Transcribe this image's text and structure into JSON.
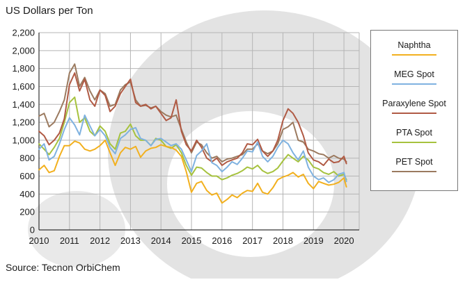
{
  "chart_data": {
    "type": "line",
    "title": "",
    "ylabel": "US Dollars per Ton",
    "xlabel": "",
    "source": "Source: Tecnon OrbiChem",
    "ylim": [
      0,
      2200
    ],
    "xlim": [
      2010,
      2020.5
    ],
    "yticks": [
      "0",
      "200",
      "400",
      "600",
      "800",
      "1,000",
      "1,200",
      "1,400",
      "1,600",
      "1,800",
      "2,000",
      "2,200"
    ],
    "xticks": [
      "2010",
      "2011",
      "2012",
      "2013",
      "2014",
      "2015",
      "2016",
      "2017",
      "2018",
      "2019",
      "2020"
    ],
    "grid": true,
    "legend_position": "right",
    "series": [
      {
        "name": "Naphtha",
        "color": "#f2b01e",
        "x": [
          2010.0,
          2010.17,
          2010.33,
          2010.5,
          2010.67,
          2010.83,
          2011.0,
          2011.17,
          2011.33,
          2011.5,
          2011.67,
          2011.83,
          2012.0,
          2012.17,
          2012.33,
          2012.5,
          2012.67,
          2012.83,
          2013.0,
          2013.17,
          2013.33,
          2013.5,
          2013.67,
          2013.83,
          2014.0,
          2014.17,
          2014.33,
          2014.5,
          2014.67,
          2014.83,
          2015.0,
          2015.17,
          2015.33,
          2015.5,
          2015.67,
          2015.83,
          2016.0,
          2016.17,
          2016.33,
          2016.5,
          2016.67,
          2016.83,
          2017.0,
          2017.17,
          2017.33,
          2017.5,
          2017.67,
          2017.83,
          2018.0,
          2018.17,
          2018.33,
          2018.5,
          2018.67,
          2018.83,
          2019.0,
          2019.17,
          2019.33,
          2019.5,
          2019.67,
          2019.83,
          2020.0,
          2020.08
        ],
        "values": [
          670,
          720,
          640,
          660,
          820,
          940,
          940,
          990,
          970,
          900,
          880,
          900,
          940,
          1000,
          860,
          720,
          860,
          920,
          900,
          930,
          810,
          880,
          910,
          920,
          950,
          930,
          920,
          890,
          820,
          650,
          420,
          520,
          540,
          440,
          390,
          410,
          300,
          340,
          390,
          360,
          410,
          440,
          430,
          520,
          420,
          400,
          470,
          560,
          590,
          610,
          640,
          590,
          620,
          520,
          460,
          540,
          520,
          500,
          510,
          530,
          580,
          480
        ]
      },
      {
        "name": "MEG Spot",
        "color": "#7fb2e0",
        "x": [
          2010.0,
          2010.17,
          2010.33,
          2010.5,
          2010.67,
          2010.83,
          2011.0,
          2011.17,
          2011.33,
          2011.5,
          2011.67,
          2011.83,
          2012.0,
          2012.17,
          2012.33,
          2012.5,
          2012.67,
          2012.83,
          2013.0,
          2013.17,
          2013.33,
          2013.5,
          2013.67,
          2013.83,
          2014.0,
          2014.17,
          2014.33,
          2014.5,
          2014.67,
          2014.83,
          2015.0,
          2015.17,
          2015.33,
          2015.5,
          2015.67,
          2015.83,
          2016.0,
          2016.17,
          2016.33,
          2016.5,
          2016.67,
          2016.83,
          2017.0,
          2017.17,
          2017.33,
          2017.5,
          2017.67,
          2017.83,
          2018.0,
          2018.17,
          2018.33,
          2018.5,
          2018.67,
          2018.83,
          2019.0,
          2019.17,
          2019.33,
          2019.5,
          2019.67,
          2019.83,
          2020.0,
          2020.08
        ],
        "values": [
          900,
          960,
          780,
          820,
          960,
          1120,
          1250,
          1170,
          1060,
          1280,
          1160,
          1050,
          1120,
          1050,
          920,
          850,
          1020,
          1060,
          1120,
          1140,
          1020,
          1000,
          940,
          1010,
          1020,
          980,
          940,
          960,
          900,
          780,
          650,
          830,
          880,
          960,
          750,
          720,
          650,
          700,
          760,
          730,
          800,
          880,
          870,
          980,
          820,
          760,
          820,
          920,
          1000,
          960,
          860,
          780,
          880,
          700,
          600,
          560,
          580,
          530,
          560,
          620,
          640,
          540
        ]
      },
      {
        "name": "Paraxylene Spot",
        "color": "#b05a44",
        "x": [
          2010.0,
          2010.17,
          2010.33,
          2010.5,
          2010.67,
          2010.83,
          2011.0,
          2011.17,
          2011.33,
          2011.5,
          2011.67,
          2011.83,
          2012.0,
          2012.17,
          2012.33,
          2012.5,
          2012.67,
          2012.83,
          2013.0,
          2013.17,
          2013.33,
          2013.5,
          2013.67,
          2013.83,
          2014.0,
          2014.17,
          2014.33,
          2014.5,
          2014.67,
          2014.83,
          2015.0,
          2015.17,
          2015.33,
          2015.5,
          2015.67,
          2015.83,
          2016.0,
          2016.17,
          2016.33,
          2016.5,
          2016.67,
          2016.83,
          2017.0,
          2017.17,
          2017.33,
          2017.5,
          2017.67,
          2017.83,
          2018.0,
          2018.17,
          2018.33,
          2018.5,
          2018.67,
          2018.83,
          2019.0,
          2019.17,
          2019.33,
          2019.5,
          2019.67,
          2019.83,
          2020.0,
          2020.08
        ],
        "values": [
          1100,
          1050,
          950,
          1000,
          1080,
          1240,
          1620,
          1750,
          1550,
          1680,
          1450,
          1380,
          1560,
          1500,
          1320,
          1380,
          1520,
          1600,
          1680,
          1420,
          1380,
          1400,
          1350,
          1380,
          1300,
          1220,
          1250,
          1450,
          1100,
          950,
          880,
          1000,
          920,
          800,
          760,
          800,
          720,
          760,
          780,
          800,
          860,
          960,
          950,
          1010,
          880,
          820,
          880,
          1000,
          1220,
          1350,
          1300,
          1200,
          1050,
          860,
          780,
          760,
          720,
          790,
          750,
          760,
          820,
          740
        ]
      },
      {
        "name": "PTA Spot",
        "color": "#a6c23e",
        "x": [
          2010.0,
          2010.17,
          2010.33,
          2010.5,
          2010.67,
          2010.83,
          2011.0,
          2011.17,
          2011.33,
          2011.5,
          2011.67,
          2011.83,
          2012.0,
          2012.17,
          2012.33,
          2012.5,
          2012.67,
          2012.83,
          2013.0,
          2013.17,
          2013.33,
          2013.5,
          2013.67,
          2013.83,
          2014.0,
          2014.17,
          2014.33,
          2014.5,
          2014.67,
          2014.83,
          2015.0,
          2015.17,
          2015.33,
          2015.5,
          2015.67,
          2015.83,
          2016.0,
          2016.17,
          2016.33,
          2016.5,
          2016.67,
          2016.83,
          2017.0,
          2017.17,
          2017.33,
          2017.5,
          2017.67,
          2017.83,
          2018.0,
          2018.17,
          2018.33,
          2018.5,
          2018.67,
          2018.83,
          2019.0,
          2019.17,
          2019.33,
          2019.5,
          2019.67,
          2019.83,
          2020.0,
          2020.08
        ],
        "values": [
          960,
          900,
          840,
          920,
          1020,
          1200,
          1420,
          1480,
          1200,
          1250,
          1100,
          1050,
          1160,
          1100,
          960,
          900,
          1080,
          1100,
          1180,
          1050,
          1000,
          1000,
          940,
          1020,
          1000,
          930,
          910,
          950,
          860,
          720,
          610,
          700,
          690,
          640,
          600,
          600,
          560,
          580,
          610,
          630,
          660,
          700,
          680,
          720,
          660,
          630,
          650,
          690,
          770,
          840,
          800,
          760,
          820,
          780,
          700,
          680,
          640,
          620,
          650,
          600,
          620,
          560
        ]
      },
      {
        "name": "PET Spot",
        "color": "#9b7a5f",
        "x": [
          2010.0,
          2010.17,
          2010.33,
          2010.5,
          2010.67,
          2010.83,
          2011.0,
          2011.17,
          2011.33,
          2011.5,
          2011.67,
          2011.83,
          2012.0,
          2012.17,
          2012.33,
          2012.5,
          2012.67,
          2012.83,
          2013.0,
          2013.17,
          2013.33,
          2013.5,
          2013.67,
          2013.83,
          2014.0,
          2014.17,
          2014.33,
          2014.5,
          2014.67,
          2014.83,
          2015.0,
          2015.17,
          2015.33,
          2015.5,
          2015.67,
          2015.83,
          2016.0,
          2016.17,
          2016.33,
          2016.5,
          2016.67,
          2016.83,
          2017.0,
          2017.17,
          2017.33,
          2017.5,
          2017.67,
          2017.83,
          2018.0,
          2018.17,
          2018.33,
          2018.5,
          2018.67,
          2018.83,
          2019.0,
          2019.17,
          2019.33,
          2019.5,
          2019.67,
          2019.83,
          2020.0,
          2020.08
        ],
        "values": [
          1270,
          1300,
          1150,
          1200,
          1320,
          1450,
          1750,
          1850,
          1600,
          1700,
          1550,
          1450,
          1560,
          1520,
          1380,
          1400,
          1560,
          1620,
          1650,
          1450,
          1380,
          1390,
          1360,
          1380,
          1320,
          1280,
          1260,
          1280,
          1120,
          980,
          860,
          980,
          950,
          860,
          800,
          820,
          760,
          790,
          800,
          820,
          840,
          900,
          900,
          960,
          880,
          850,
          880,
          960,
          1120,
          1150,
          1200,
          1000,
          980,
          900,
          880,
          850,
          840,
          800,
          830,
          800,
          790,
          760
        ]
      }
    ]
  }
}
